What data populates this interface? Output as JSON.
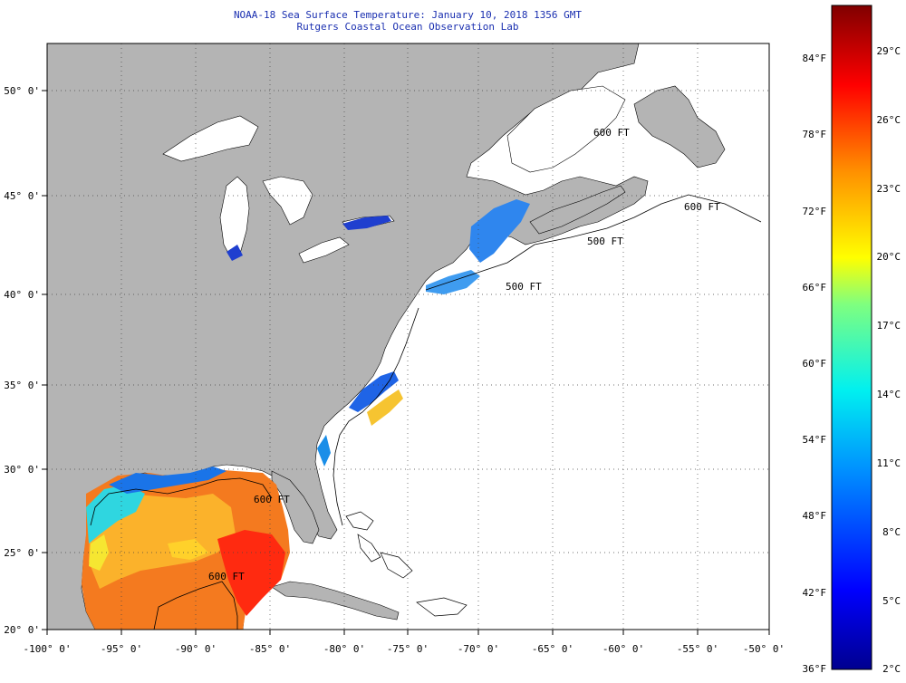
{
  "title_line1": "NOAA-18 Sea Surface Temperature:  January 10, 2018 1356 GMT",
  "title_line2": "Rutgers Coastal Ocean Observation Lab",
  "x_ticks": [
    "-100° 0'",
    "-95° 0'",
    "-90° 0'",
    "-85° 0'",
    "-80° 0'",
    "-75° 0'",
    "-70° 0'",
    "-65° 0'",
    "-60° 0'",
    "-55° 0'",
    "-50° 0'"
  ],
  "y_ticks": [
    "50° 0'",
    "45° 0'",
    "40° 0'",
    "35° 0'",
    "30° 0'",
    "25° 0'",
    "20° 0'"
  ],
  "contour_labels": [
    "500 FT",
    "500 FT",
    "600 FT",
    "600 FT",
    "600 FT",
    "600 FT"
  ],
  "colorbar": {
    "fahrenheit": [
      "84°F",
      "78°F",
      "72°F",
      "66°F",
      "60°F",
      "54°F",
      "48°F",
      "42°F",
      "36°F"
    ],
    "celsius": [
      "29°C",
      "26°C",
      "23°C",
      "20°C",
      "17°C",
      "14°C",
      "11°C",
      "8°C",
      "5°C",
      "2°C"
    ]
  },
  "colors": {
    "land": "#b4b4b4",
    "ocean": "#ffffff",
    "title": "#1a2fb0"
  }
}
